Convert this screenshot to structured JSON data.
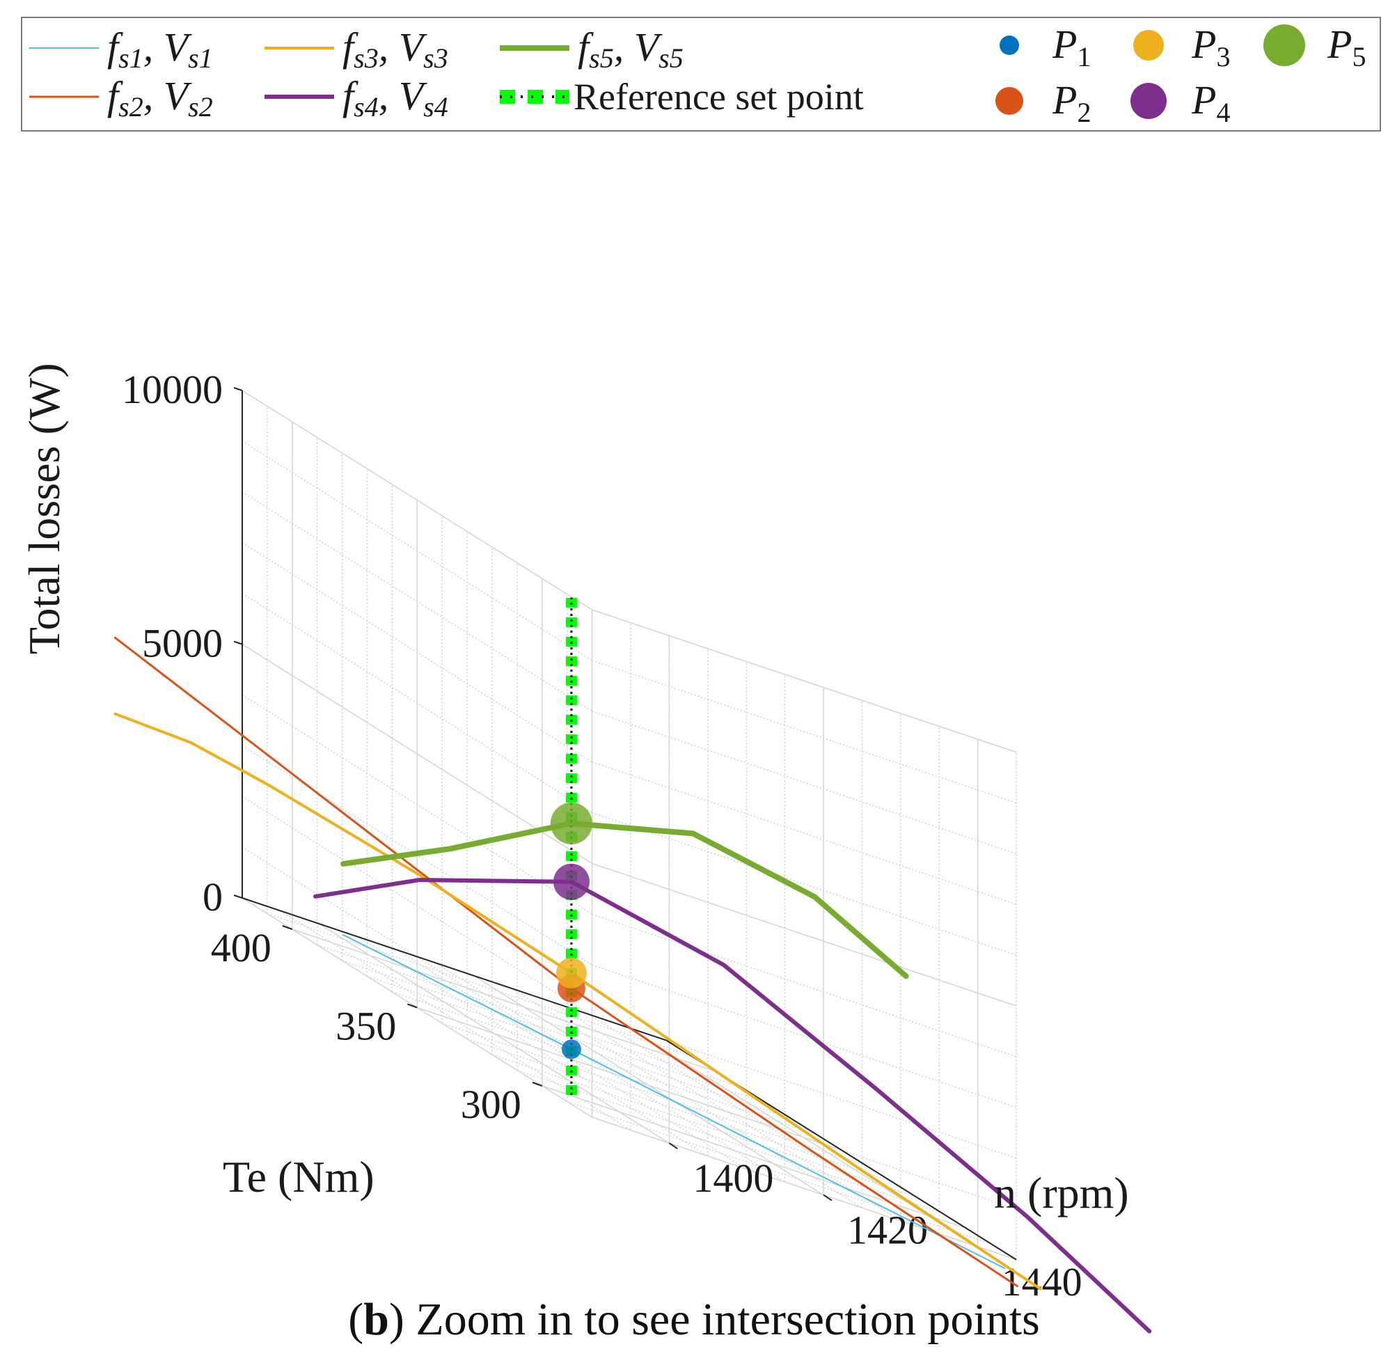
{
  "chart_data": {
    "type": "line",
    "projection": "3d",
    "caption": {
      "label": "b",
      "text": "Zoom in to see intersection points"
    },
    "axes": {
      "x": {
        "label": "n (rpm)",
        "ticks": [
          1400,
          1420,
          1440
        ],
        "range": [
          1390,
          1445
        ]
      },
      "y": {
        "label": "Te (Nm)",
        "ticks": [
          300,
          350,
          400
        ],
        "range": [
          280,
          420
        ]
      },
      "z": {
        "label": "Total losses (W)",
        "ticks": [
          0,
          5000,
          10000
        ],
        "tick_labels": [
          "0",
          "5000",
          "10000"
        ],
        "range": [
          -700,
          10000
        ]
      }
    },
    "grid": true,
    "legend": {
      "position": "top",
      "entries": [
        {
          "key": "s1",
          "label": "f_s1, V_s1",
          "kind": "line",
          "color": "#4DBEEE",
          "width": 2
        },
        {
          "key": "s3",
          "label": "f_s3, V_s3",
          "kind": "line",
          "color": "#EDB120",
          "width": 4
        },
        {
          "key": "s5",
          "label": "f_s5, V_s5",
          "kind": "line",
          "color": "#77AC30",
          "width": 8
        },
        {
          "key": "s2",
          "label": "f_s2, V_s2",
          "kind": "line",
          "color": "#D95319",
          "width": 3
        },
        {
          "key": "s4",
          "label": "f_s4, V_s4",
          "kind": "line",
          "color": "#7E2F8E",
          "width": 6
        },
        {
          "key": "ref",
          "label": "Reference set point",
          "kind": "dashed",
          "color": "#00FF00",
          "width": 10
        },
        {
          "key": "P1",
          "label": "P_1",
          "kind": "marker",
          "color": "#0072BD",
          "size": 14
        },
        {
          "key": "P3",
          "label": "P_3",
          "kind": "marker",
          "color": "#EDB120",
          "size": 22
        },
        {
          "key": "P5",
          "label": "P_5",
          "kind": "marker",
          "color": "#77AC30",
          "size": 30
        },
        {
          "key": "P2",
          "label": "P_2",
          "kind": "marker",
          "color": "#D95319",
          "size": 20
        },
        {
          "key": "P4",
          "label": "P_4",
          "kind": "marker",
          "color": "#7E2F8E",
          "size": 26
        }
      ]
    },
    "series": [
      {
        "name": "f_s1, V_s1",
        "color": "#4DBEEE",
        "width": 2,
        "points": [
          [
            1395,
            395,
            300
          ],
          [
            1410,
            350,
            200
          ],
          [
            1425,
            300,
            100
          ],
          [
            1437,
            260,
            40
          ]
        ]
      },
      {
        "name": "f_s2, V_s2",
        "color": "#D95319",
        "width": 3,
        "points": [
          [
            1380,
            440,
            4000
          ],
          [
            1395,
            395,
            2700
          ],
          [
            1410,
            350,
            1400
          ],
          [
            1425,
            300,
            500
          ],
          [
            1438,
            258,
            -200
          ]
        ]
      },
      {
        "name": "f_s3, V_s3",
        "color": "#EDB120",
        "width": 4,
        "points": [
          [
            1380,
            440,
            2500
          ],
          [
            1385,
            425,
            2650
          ],
          [
            1390,
            410,
            2550
          ],
          [
            1400,
            380,
            2200
          ],
          [
            1410,
            350,
            1700
          ],
          [
            1420,
            320,
            1100
          ],
          [
            1430,
            290,
            500
          ],
          [
            1441,
            258,
            -100
          ]
        ]
      },
      {
        "name": "f_s4, V_s4",
        "color": "#7E2F8E",
        "width": 6,
        "points": [
          [
            1393,
            400,
            800
          ],
          [
            1400,
            380,
            2100
          ],
          [
            1410,
            350,
            3500
          ],
          [
            1420,
            320,
            3300
          ],
          [
            1430,
            290,
            2300
          ],
          [
            1440,
            260,
            1200
          ],
          [
            1448,
            236,
            100
          ]
        ]
      },
      {
        "name": "f_s5, V_s5",
        "color": "#77AC30",
        "width": 8,
        "points": [
          [
            1395,
            395,
            1700
          ],
          [
            1402,
            374,
            3000
          ],
          [
            1410,
            350,
            4650
          ],
          [
            1418,
            326,
            5600
          ],
          [
            1426,
            302,
            5500
          ],
          [
            1432,
            284,
            4800
          ]
        ]
      },
      {
        "name": "Reference set point",
        "color": "#00FF00",
        "style": "dashed",
        "width": 10,
        "points": [
          [
            1410,
            350,
            -700
          ],
          [
            1410,
            350,
            9100
          ]
        ]
      }
    ],
    "points": [
      {
        "name": "P_1",
        "color": "#0072BD",
        "x": 1410,
        "y": 350,
        "z": 200,
        "size": 14
      },
      {
        "name": "P_2",
        "color": "#D95319",
        "x": 1410,
        "y": 350,
        "z": 1400,
        "size": 20
      },
      {
        "name": "P_3",
        "color": "#EDB120",
        "x": 1410,
        "y": 350,
        "z": 1700,
        "size": 22
      },
      {
        "name": "P_4",
        "color": "#7E2F8E",
        "x": 1410,
        "y": 350,
        "z": 3500,
        "size": 26
      },
      {
        "name": "P_5",
        "color": "#77AC30",
        "x": 1410,
        "y": 350,
        "z": 4650,
        "size": 30
      }
    ]
  }
}
